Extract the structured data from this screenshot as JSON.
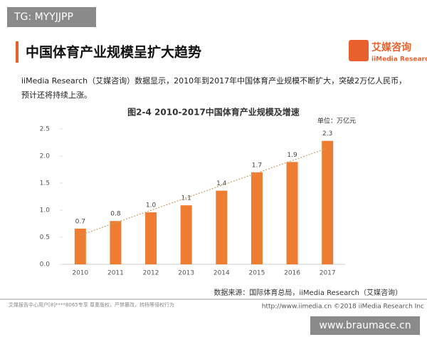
{
  "watermark": "TG: MYYJJPP",
  "heading": "中国体育产业规模呈扩大趋势",
  "logo": {
    "name": "艾媒咨询",
    "sub": "iiMedia Research"
  },
  "intro": "iiMedia Research（艾媒咨询）数据显示，2010年到2017年中国体育产业规模不断扩大，突破2万亿人民币，预计还将持续上涨。",
  "chart_data": {
    "type": "bar",
    "title": "图2-4 2010-2017中国体育产业规模及增速",
    "unit": "单位：万亿元",
    "categories": [
      "2010",
      "2011",
      "2012",
      "2013",
      "2014",
      "2015",
      "2016",
      "2017"
    ],
    "values": [
      0.66,
      0.8,
      0.96,
      1.09,
      1.36,
      1.7,
      1.89,
      2.28
    ],
    "value_labels": [
      "0.7",
      "0.8",
      "1.0",
      "1.1",
      "1.4",
      "1.7",
      "1.9",
      "2.3"
    ],
    "color": "#ee7d31",
    "ylim": [
      0,
      2.5
    ],
    "yticks": [
      {
        "value": 0,
        "label": "0.0"
      },
      {
        "value": 0.5,
        "label": "0.5"
      },
      {
        "value": 1,
        "label": "1.0"
      },
      {
        "value": 1.5,
        "label": "1.5"
      },
      {
        "value": 2,
        "label": "2.0"
      },
      {
        "value": 2.5,
        "label": "2.5"
      }
    ],
    "grid": false,
    "trendline": true,
    "source": "数据来源：国际体育总局，iiMedia Research（艾媒咨询）"
  },
  "footer": {
    "left": "艾媒报告中心用户[8]****8065专享 尊重版权，严禁篡改，转档等侵权行为",
    "right": "http://www.iimedia.cn   ©2018 iiMedia Research Inc"
  },
  "site": "www.braumace.cn"
}
